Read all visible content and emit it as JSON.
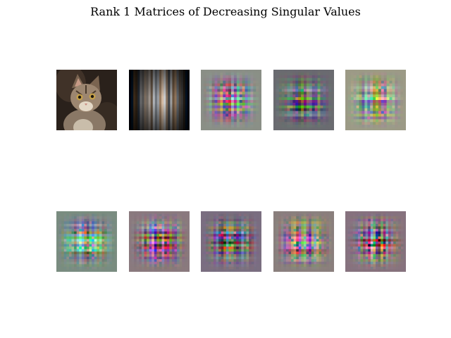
{
  "chart_data": {
    "type": "image-grid",
    "title": "Rank 1 Matrices of Decreasing Singular Values",
    "panels": [
      {
        "image": "original-cat-photo",
        "avg_color": "#5e4d3e",
        "pattern": "photo"
      },
      {
        "image": "rank-1-component-1",
        "avg_color": "#5a5550",
        "pattern": "vertical-stripes"
      },
      {
        "image": "rank-1-component-2",
        "avg_color": "#8a8f86",
        "pattern": "plaid"
      },
      {
        "image": "rank-1-component-3",
        "avg_color": "#6a6b70",
        "pattern": "plaid"
      },
      {
        "image": "rank-1-component-4",
        "avg_color": "#9c9a86",
        "pattern": "plaid"
      },
      {
        "image": "rank-1-component-5",
        "avg_color": "#7a8c80",
        "pattern": "checker"
      },
      {
        "image": "rank-1-component-6",
        "avg_color": "#8a7a7e",
        "pattern": "checker"
      },
      {
        "image": "rank-1-component-7",
        "avg_color": "#7a6e80",
        "pattern": "checker"
      },
      {
        "image": "rank-1-component-8",
        "avg_color": "#8a7f7d",
        "pattern": "checker"
      },
      {
        "image": "rank-1-component-9",
        "avg_color": "#86727e",
        "pattern": "checker"
      }
    ]
  }
}
